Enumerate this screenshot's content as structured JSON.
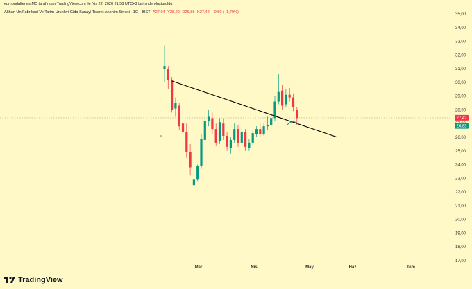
{
  "header_line": "edmondaltertestMC tarafından TradingView.com ile Nis 22, 2026 21:58 UTC+3 tarihinde oluşturuldu",
  "symbol_title": "Akhan Un Fabrikasi Ve Tarim Urunleri Gida Sanayi Ticaret Anonim Sirketi · 1G · BIST",
  "ohlc": {
    "open": "A27,94",
    "high": "Y28,20",
    "low": "D26,88",
    "close": "K27,42",
    "change": "−0,50 (−1,79%)"
  },
  "brand": "TradingView",
  "colors": {
    "background": "#fff9c8",
    "up": "#089981",
    "down": "#f23645",
    "trendline": "#000000",
    "last_price_label": "#f23645",
    "green_label": "#089981"
  },
  "chart_data": {
    "type": "candlestick",
    "ylim": [
      17,
      35
    ],
    "y_ticks": [
      "35,00",
      "34,00",
      "33,00",
      "32,00",
      "31,00",
      "30,00",
      "29,00",
      "28,00",
      "27,00",
      "26,00",
      "25,00",
      "24,00",
      "23,00",
      "22,00",
      "21,00",
      "20,00",
      "19,00",
      "18,00",
      "17,00"
    ],
    "x_ticks": [
      "Mar",
      "Nis",
      "May",
      "Haz",
      "Tem"
    ],
    "price_labels": [
      {
        "text": "27,42",
        "value": 27.42,
        "color": "down"
      },
      {
        "text": "26,83",
        "value": 26.83,
        "color": "up"
      }
    ],
    "candles": [
      {
        "o": 31.0,
        "h": 32.7,
        "l": 30.0,
        "c": 31.2
      },
      {
        "o": 31.0,
        "h": 31.2,
        "l": 29.5,
        "c": 30.2
      },
      {
        "o": 30.2,
        "h": 30.4,
        "l": 27.8,
        "c": 28.0
      },
      {
        "o": 28.1,
        "h": 28.9,
        "l": 27.5,
        "c": 28.5
      },
      {
        "o": 28.3,
        "h": 28.5,
        "l": 26.5,
        "c": 26.8
      },
      {
        "o": 27.0,
        "h": 27.6,
        "l": 26.1,
        "c": 26.4
      },
      {
        "o": 26.4,
        "h": 27.0,
        "l": 24.5,
        "c": 24.9
      },
      {
        "o": 24.9,
        "h": 25.5,
        "l": 23.2,
        "c": 23.8
      },
      {
        "o": 22.5,
        "h": 23.0,
        "l": 22.0,
        "c": 22.9
      },
      {
        "o": 22.9,
        "h": 24.0,
        "l": 22.8,
        "c": 23.9
      },
      {
        "o": 23.9,
        "h": 26.2,
        "l": 23.7,
        "c": 25.9
      },
      {
        "o": 25.8,
        "h": 27.5,
        "l": 25.6,
        "c": 27.2
      },
      {
        "o": 27.2,
        "h": 28.0,
        "l": 26.8,
        "c": 27.5
      },
      {
        "o": 27.4,
        "h": 27.8,
        "l": 26.2,
        "c": 26.6
      },
      {
        "o": 26.6,
        "h": 27.0,
        "l": 25.4,
        "c": 25.6
      },
      {
        "o": 25.7,
        "h": 27.4,
        "l": 25.5,
        "c": 27.1
      },
      {
        "o": 27.0,
        "h": 27.4,
        "l": 25.8,
        "c": 26.1
      },
      {
        "o": 26.1,
        "h": 26.4,
        "l": 25.0,
        "c": 25.3
      },
      {
        "o": 25.2,
        "h": 26.0,
        "l": 24.8,
        "c": 25.8
      },
      {
        "o": 25.8,
        "h": 27.0,
        "l": 25.6,
        "c": 26.6
      },
      {
        "o": 26.6,
        "h": 26.9,
        "l": 25.3,
        "c": 25.6
      },
      {
        "o": 25.6,
        "h": 26.7,
        "l": 25.4,
        "c": 26.4
      },
      {
        "o": 26.4,
        "h": 26.6,
        "l": 25.0,
        "c": 25.3
      },
      {
        "o": 25.2,
        "h": 25.9,
        "l": 25.0,
        "c": 25.6
      },
      {
        "o": 25.6,
        "h": 26.5,
        "l": 25.4,
        "c": 26.3
      },
      {
        "o": 26.2,
        "h": 26.8,
        "l": 26.0,
        "c": 26.6
      },
      {
        "o": 26.6,
        "h": 27.0,
        "l": 26.0,
        "c": 26.2
      },
      {
        "o": 26.2,
        "h": 27.0,
        "l": 26.1,
        "c": 26.8
      },
      {
        "o": 26.8,
        "h": 27.5,
        "l": 26.5,
        "c": 26.9
      },
      {
        "o": 26.9,
        "h": 27.6,
        "l": 26.6,
        "c": 27.4
      },
      {
        "o": 27.4,
        "h": 29.0,
        "l": 27.2,
        "c": 28.6
      },
      {
        "o": 28.6,
        "h": 30.6,
        "l": 28.4,
        "c": 29.3
      },
      {
        "o": 29.4,
        "h": 29.8,
        "l": 28.0,
        "c": 28.3
      },
      {
        "o": 28.4,
        "h": 29.5,
        "l": 28.2,
        "c": 29.1
      },
      {
        "o": 29.1,
        "h": 29.6,
        "l": 28.6,
        "c": 28.9
      },
      {
        "o": 28.9,
        "h": 29.2,
        "l": 27.9,
        "c": 28.2
      },
      {
        "o": 28.0,
        "h": 28.2,
        "l": 26.9,
        "c": 27.4
      }
    ],
    "trendline": [
      {
        "index": 2,
        "value": 30.1
      },
      {
        "index": 47,
        "value": 26.0
      }
    ]
  }
}
